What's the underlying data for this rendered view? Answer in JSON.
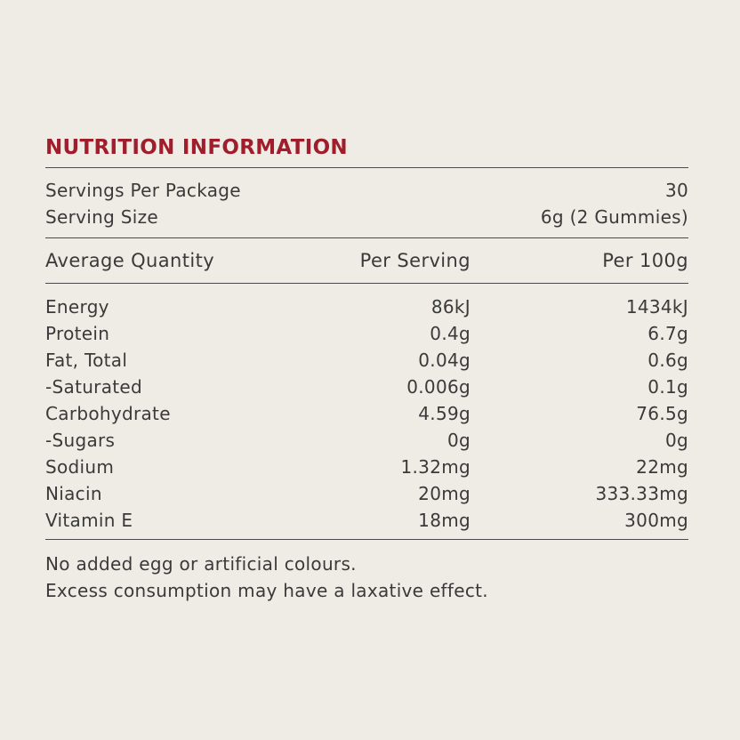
{
  "title": "NUTRITION INFORMATION",
  "servings": {
    "per_package_label": "Servings Per Package",
    "per_package_value": "30",
    "size_label": "Serving Size",
    "size_value": "6g (2 Gummies)"
  },
  "table": {
    "headers": [
      "Average Quantity",
      "Per Serving",
      "Per 100g"
    ],
    "rows": [
      [
        "Energy",
        "86kJ",
        "1434kJ"
      ],
      [
        "Protein",
        "0.4g",
        "6.7g"
      ],
      [
        "Fat, Total",
        "0.04g",
        "0.6g"
      ],
      [
        "-Saturated",
        "0.006g",
        "0.1g"
      ],
      [
        "Carbohydrate",
        "4.59g",
        "76.5g"
      ],
      [
        "-Sugars",
        "0g",
        "0g"
      ],
      [
        "Sodium",
        "1.32mg",
        "22mg"
      ],
      [
        "Niacin",
        "20mg",
        "333.33mg"
      ],
      [
        "Vitamin E",
        "18mg",
        "300mg"
      ]
    ]
  },
  "notes": [
    "No added egg or artificial colours.",
    "Excess consumption may have a laxative effect."
  ],
  "colors": {
    "background": "#efece6",
    "title": "#a01e2c",
    "text": "#3a3a3a",
    "rule": "#4a4a4a"
  }
}
